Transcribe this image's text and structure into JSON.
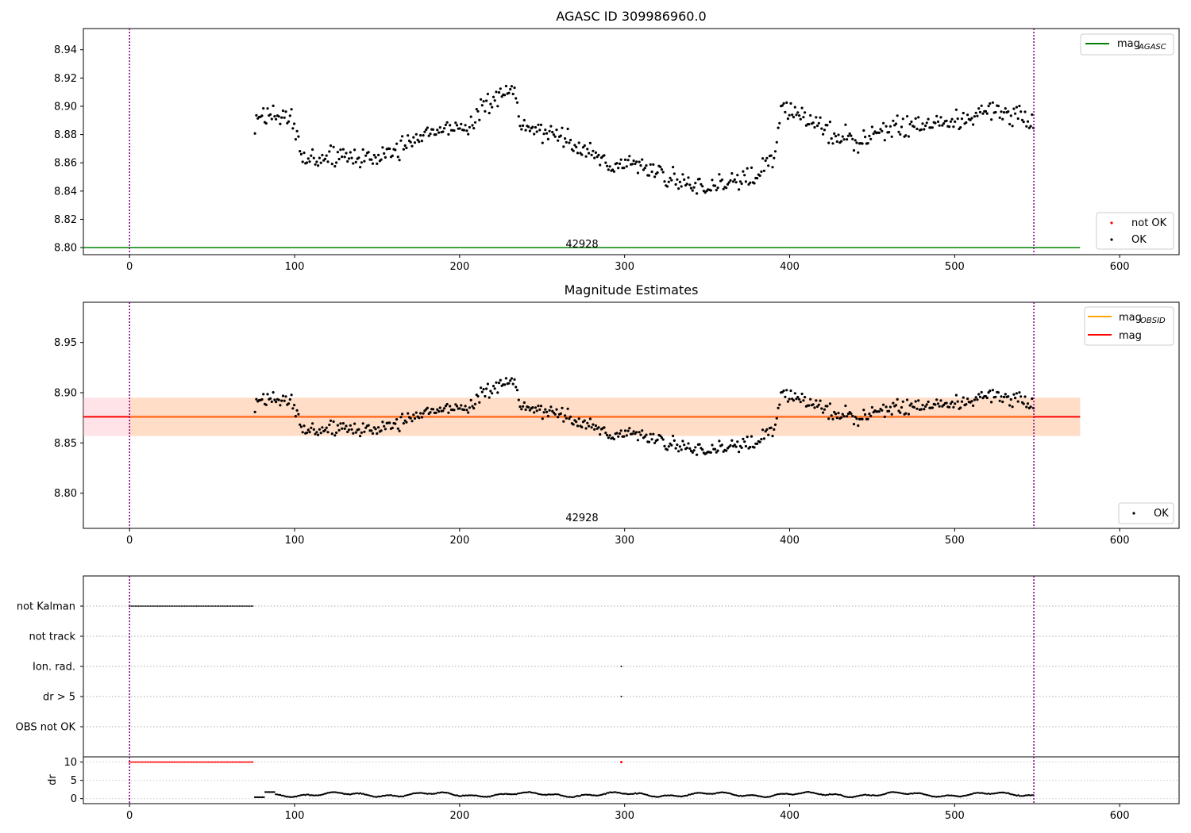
{
  "chart_data": [
    {
      "type": "scatter",
      "title": "AGASC ID 309986960.0",
      "xlim": [
        -28,
        636
      ],
      "ylim": [
        8.795,
        8.955
      ],
      "x_ticks": [
        0,
        100,
        200,
        300,
        400,
        500,
        600
      ],
      "y_ticks": [
        "8.80",
        "8.82",
        "8.84",
        "8.86",
        "8.88",
        "8.90",
        "8.92",
        "8.94"
      ],
      "obsid_label": "42928",
      "obsid_boundaries": [
        0,
        548
      ],
      "mag_agasc": 8.8,
      "legend_top": [
        "mag_AGASC"
      ],
      "legend_bottom": [
        "not OK",
        "OK"
      ],
      "colors": {
        "ok": "#000000",
        "not_ok": "#ff0000",
        "agasc_line": "#008000",
        "boundary": "#800080"
      }
    },
    {
      "type": "scatter",
      "title": "Magnitude Estimates",
      "xlim": [
        -28,
        636
      ],
      "ylim": [
        8.765,
        8.99
      ],
      "x_ticks": [
        0,
        100,
        200,
        300,
        400,
        500,
        600
      ],
      "y_ticks": [
        "8.80",
        "8.85",
        "8.90",
        "8.95"
      ],
      "obsid_label": "42928",
      "mag": 8.876,
      "mag_band": [
        8.857,
        8.895
      ],
      "mag_obsid": 8.876,
      "obsid_band": [
        8.857,
        8.895
      ],
      "legend_top": [
        "mag_OBSID",
        "mag"
      ],
      "legend_bottom": [
        "OK"
      ],
      "colors": {
        "mag_obsid": "#ffa500",
        "mag": "#ff0000",
        "band_obsid": "#ffdab9",
        "band_mag": "#ffc0cb"
      }
    },
    {
      "type": "scatter",
      "xlim": [
        -28,
        636
      ],
      "x_ticks": [
        0,
        100,
        200,
        300,
        400,
        500,
        600
      ],
      "flag_labels": [
        "not Kalman",
        "not track",
        "Ion. rad.",
        "dr > 5",
        "OBS not OK"
      ],
      "flags": {
        "not Kalman": {
          "x_range": [
            0,
            75
          ]
        },
        "Ion. rad.": {
          "x": [
            298
          ]
        },
        "dr > 5": {
          "x": [
            298
          ]
        }
      },
      "dr_ylabel": "dr",
      "dr_ylim": [
        -0.5,
        11
      ],
      "dr_ticks": [
        "0",
        "5",
        "10"
      ]
    }
  ],
  "legend_labels": {
    "mag_agasc_main": "mag",
    "mag_agasc_sub": "AGASC",
    "mag_obsid_main": "mag",
    "mag_obsid_sub": "OBSID",
    "mag": "mag",
    "not_ok": "not OK",
    "ok": "OK"
  }
}
